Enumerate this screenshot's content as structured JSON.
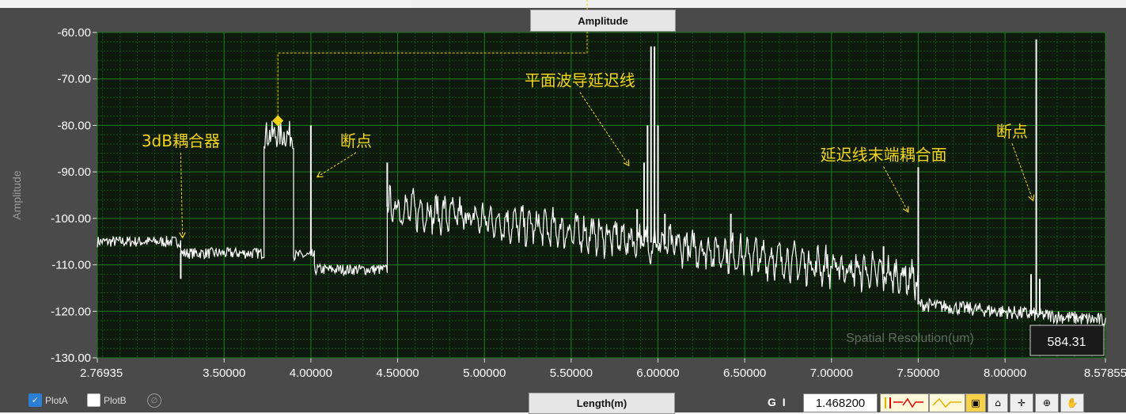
{
  "top_tab_label": "Amplitude",
  "bottom_tab_label": "Length(m)",
  "legend": {
    "plot_a": "PlotA",
    "plot_b": "PlotB",
    "plot_a_checked": true,
    "plot_b_checked": false
  },
  "cursor_label": "G I",
  "cursor_value": "1.468200",
  "spatial_resolution_label": "Spatial Resolution(um)",
  "spatial_resolution_value": "584.31",
  "colors": {
    "plot_bg": "#0e1a0e",
    "grid_major": "#1b7a1b",
    "grid_minor": "#134f13",
    "trace": "#ffffff",
    "annotation": "#f2d31a",
    "frame": "#4a4a4a"
  },
  "chart_data": {
    "type": "line",
    "ylabel": "Amplitude",
    "xlabel": "Length(m)",
    "xlim": [
      2.76935,
      8.57855
    ],
    "ylim": [
      -130,
      -60
    ],
    "y_ticks": [
      -60,
      -70,
      -80,
      -90,
      -100,
      -110,
      -120,
      -130
    ],
    "y_tick_labels": [
      "-60.00",
      "-70.00",
      "-80.00",
      "-90.00",
      "-100.00",
      "-110.00",
      "-120.00",
      "-130.00"
    ],
    "x_ticks": [
      2.76935,
      3.5,
      4.0,
      4.5,
      5.0,
      5.5,
      6.0,
      6.5,
      7.0,
      7.5,
      8.0,
      8.57855
    ],
    "x_tick_labels": [
      "2.76935",
      "3.50000",
      "4.00000",
      "4.50000",
      "5.00000",
      "5.50000",
      "6.00000",
      "6.50000",
      "7.00000",
      "7.50000",
      "8.00000",
      "8.57855"
    ],
    "grid": true,
    "series": [
      {
        "segments": [
          {
            "x0": 2.77,
            "x1": 3.25,
            "y": -105.0,
            "noise": 1.2
          },
          {
            "x0": 3.25,
            "x1": 3.73,
            "y": -107.5,
            "noise": 1.2
          },
          {
            "x0": 3.73,
            "x1": 3.9,
            "y": -82.0,
            "noise": 3.0
          },
          {
            "x0": 3.9,
            "x1": 4.02,
            "y": -108.0,
            "noise": 1.2
          },
          {
            "x0": 4.02,
            "x1": 4.44,
            "y": -111.0,
            "noise": 1.2
          },
          {
            "x0": 4.44,
            "x1": 7.5,
            "y0": -97.5,
            "y1": -113.0,
            "noise": 2.5,
            "ripple": 2.5
          },
          {
            "x0": 7.5,
            "x1": 8.58,
            "y0": -118.5,
            "y1": -122.0,
            "noise": 1.5
          }
        ],
        "peaks": [
          {
            "x": 3.25,
            "y": -113.0
          },
          {
            "x": 4.0,
            "y": -80.0
          },
          {
            "x": 4.44,
            "y": -88.0
          },
          {
            "x": 5.88,
            "y": -98.0
          },
          {
            "x": 5.92,
            "y": -88.0
          },
          {
            "x": 5.94,
            "y": -80.0
          },
          {
            "x": 5.96,
            "y": -63.0
          },
          {
            "x": 5.98,
            "y": -63.0
          },
          {
            "x": 6.0,
            "y": -80.0
          },
          {
            "x": 6.04,
            "y": -99.0
          },
          {
            "x": 6.42,
            "y": -99.0
          },
          {
            "x": 7.3,
            "y": -106.0
          },
          {
            "x": 7.5,
            "y": -89.0
          },
          {
            "x": 8.15,
            "y": -112.0
          },
          {
            "x": 8.18,
            "y": -61.5
          },
          {
            "x": 8.2,
            "y": -113.0
          }
        ]
      }
    ],
    "marker": {
      "x": 3.81,
      "y": -79.0
    },
    "annotations": [
      {
        "text": "3dB耦合器",
        "text_x": 3.25,
        "text_y": -84.5,
        "arrow_to": [
          3.26,
          -104.0
        ]
      },
      {
        "text": "断点",
        "text_x": 4.26,
        "text_y": -84.5,
        "arrow_to": [
          4.04,
          -91.0
        ]
      },
      {
        "text": "平面波导延迟线",
        "text_x": 5.55,
        "text_y": -71.5,
        "arrow_to": [
          5.83,
          -88.5
        ]
      },
      {
        "text": "延迟线末端耦合面",
        "text_x": 7.3,
        "text_y": -87.5,
        "arrow_to": [
          7.44,
          -98.5
        ]
      },
      {
        "text": "断点",
        "text_x": 8.04,
        "text_y": -82.5,
        "arrow_to": [
          8.16,
          -96.0
        ]
      }
    ]
  }
}
